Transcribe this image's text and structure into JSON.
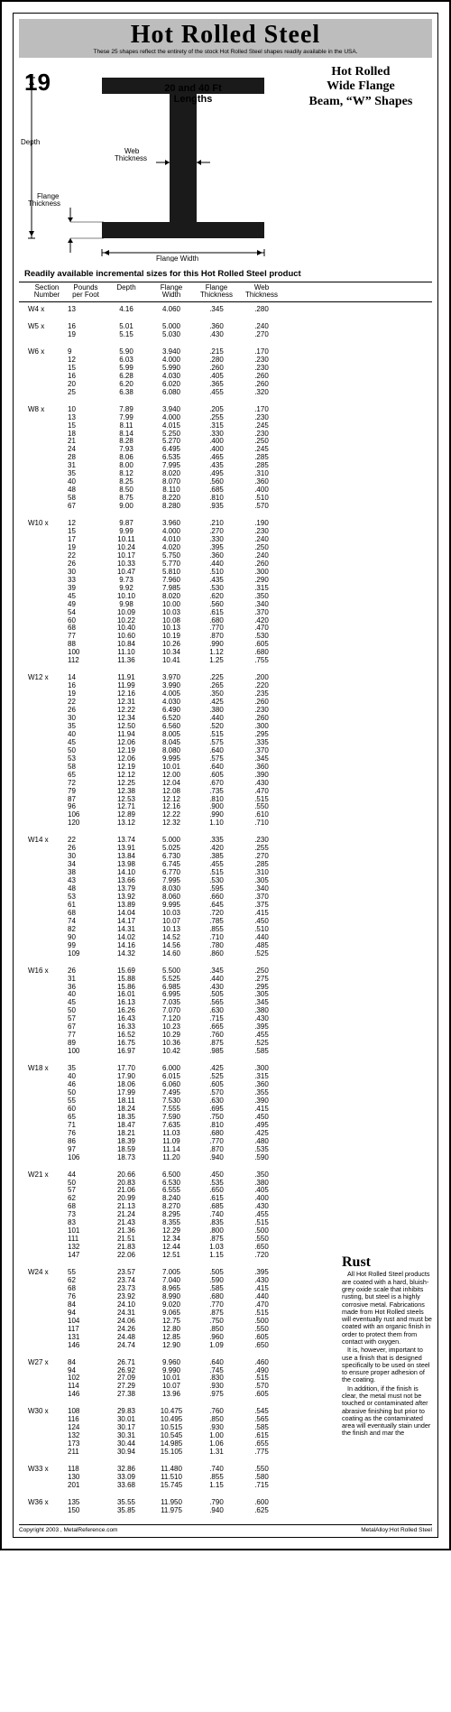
{
  "title": "Hot Rolled Steel",
  "subtitle": "These 25 shapes reflect the entirety of the stock Hot Rolled Steel shapes readily available in the USA.",
  "page_number": "19",
  "lengths_label": "20 and 40 Ft Lengths",
  "hero_right_l1": "Hot Rolled",
  "hero_right_l2": "Wide Flange",
  "hero_right_l3": "Beam, “W” Shapes",
  "diagram": {
    "depth": "Depth",
    "web_thickness": "Web Thickness",
    "flange_thickness": "Flange Thickness",
    "flange_width": "Flange Width",
    "beam_color": "#1a1a1a",
    "dim_line_color": "#000000"
  },
  "readily_label": "Readily available incremental sizes for this Hot Rolled Steel product",
  "columns": {
    "section": "Section Number",
    "ppf": "Pounds per Foot",
    "depth": "Depth",
    "fw": "Flange Width",
    "ft": "Flange Thickness",
    "wt": "Web Thickness"
  },
  "groups": [
    {
      "label": "W4  x",
      "rows": [
        [
          "13",
          "4.16",
          "4.060",
          ".345",
          ".280"
        ]
      ]
    },
    {
      "label": "W5  x",
      "rows": [
        [
          "16",
          "5.01",
          "5.000",
          ".360",
          ".240"
        ],
        [
          "19",
          "5.15",
          "5.030",
          ".430",
          ".270"
        ]
      ]
    },
    {
      "label": "W6  x",
      "rows": [
        [
          "9",
          "5.90",
          "3.940",
          ".215",
          ".170"
        ],
        [
          "12",
          "6.03",
          "4.000",
          ".280",
          ".230"
        ],
        [
          "15",
          "5.99",
          "5.990",
          ".260",
          ".230"
        ],
        [
          "16",
          "6.28",
          "4.030",
          ".405",
          ".260"
        ],
        [
          "20",
          "6.20",
          "6.020",
          ".365",
          ".260"
        ],
        [
          "25",
          "6.38",
          "6.080",
          ".455",
          ".320"
        ]
      ]
    },
    {
      "label": "W8  x",
      "rows": [
        [
          "10",
          "7.89",
          "3.940",
          ".205",
          ".170"
        ],
        [
          "13",
          "7.99",
          "4.000",
          ".255",
          ".230"
        ],
        [
          "15",
          "8.11",
          "4.015",
          ".315",
          ".245"
        ],
        [
          "18",
          "8.14",
          "5.250",
          ".330",
          ".230"
        ],
        [
          "21",
          "8.28",
          "5.270",
          ".400",
          ".250"
        ],
        [
          "24",
          "7.93",
          "6.495",
          ".400",
          ".245"
        ],
        [
          "28",
          "8.06",
          "6.535",
          ".465",
          ".285"
        ],
        [
          "31",
          "8.00",
          "7.995",
          ".435",
          ".285"
        ],
        [
          "35",
          "8.12",
          "8.020",
          ".495",
          ".310"
        ],
        [
          "40",
          "8.25",
          "8.070",
          ".560",
          ".360"
        ],
        [
          "48",
          "8.50",
          "8.110",
          ".685",
          ".400"
        ],
        [
          "58",
          "8.75",
          "8.220",
          ".810",
          ".510"
        ],
        [
          "67",
          "9.00",
          "8.280",
          ".935",
          ".570"
        ]
      ]
    },
    {
      "label": "W10  x",
      "rows": [
        [
          "12",
          "9.87",
          "3.960",
          ".210",
          ".190"
        ],
        [
          "15",
          "9.99",
          "4.000",
          ".270",
          ".230"
        ],
        [
          "17",
          "10.11",
          "4.010",
          ".330",
          ".240"
        ],
        [
          "19",
          "10.24",
          "4.020",
          ".395",
          ".250"
        ],
        [
          "22",
          "10.17",
          "5.750",
          ".360",
          ".240"
        ],
        [
          "26",
          "10.33",
          "5.770",
          ".440",
          ".260"
        ],
        [
          "30",
          "10.47",
          "5.810",
          ".510",
          ".300"
        ],
        [
          "33",
          "9.73",
          "7.960",
          ".435",
          ".290"
        ],
        [
          "39",
          "9.92",
          "7.985",
          ".530",
          ".315"
        ],
        [
          "45",
          "10.10",
          "8.020",
          ".620",
          ".350"
        ],
        [
          "49",
          "9.98",
          "10.00",
          ".560",
          ".340"
        ],
        [
          "54",
          "10.09",
          "10.03",
          ".615",
          ".370"
        ],
        [
          "60",
          "10.22",
          "10.08",
          ".680",
          ".420"
        ],
        [
          "68",
          "10.40",
          "10.13",
          ".770",
          ".470"
        ],
        [
          "77",
          "10.60",
          "10.19",
          ".870",
          ".530"
        ],
        [
          "88",
          "10.84",
          "10.26",
          ".990",
          ".605"
        ],
        [
          "100",
          "11.10",
          "10.34",
          "1.12",
          ".680"
        ],
        [
          "112",
          "11.36",
          "10.41",
          "1.25",
          ".755"
        ]
      ]
    },
    {
      "label": "W12  x",
      "rows": [
        [
          "14",
          "11.91",
          "3.970",
          ".225",
          ".200"
        ],
        [
          "16",
          "11.99",
          "3.990",
          ".265",
          ".220"
        ],
        [
          "19",
          "12.16",
          "4.005",
          ".350",
          ".235"
        ],
        [
          "22",
          "12.31",
          "4.030",
          ".425",
          ".260"
        ],
        [
          "26",
          "12.22",
          "6.490",
          ".380",
          ".230"
        ],
        [
          "30",
          "12.34",
          "6.520",
          ".440",
          ".260"
        ],
        [
          "35",
          "12.50",
          "6.560",
          ".520",
          ".300"
        ],
        [
          "40",
          "11.94",
          "8.005",
          ".515",
          ".295"
        ],
        [
          "45",
          "12.06",
          "8.045",
          ".575",
          ".335"
        ],
        [
          "50",
          "12.19",
          "8.080",
          ".640",
          ".370"
        ],
        [
          "53",
          "12.06",
          "9.995",
          ".575",
          ".345"
        ],
        [
          "58",
          "12.19",
          "10.01",
          ".640",
          ".360"
        ],
        [
          "65",
          "12.12",
          "12.00",
          ".605",
          ".390"
        ],
        [
          "72",
          "12.25",
          "12.04",
          ".670",
          ".430"
        ],
        [
          "79",
          "12.38",
          "12.08",
          ".735",
          ".470"
        ],
        [
          "87",
          "12.53",
          "12.12",
          ".810",
          ".515"
        ],
        [
          "96",
          "12.71",
          "12.16",
          ".900",
          ".550"
        ],
        [
          "106",
          "12.89",
          "12.22",
          ".990",
          ".610"
        ],
        [
          "120",
          "13.12",
          "12.32",
          "1.10",
          ".710"
        ]
      ]
    },
    {
      "label": "W14  x",
      "rows": [
        [
          "22",
          "13.74",
          "5.000",
          ".335",
          ".230"
        ],
        [
          "26",
          "13.91",
          "5.025",
          ".420",
          ".255"
        ],
        [
          "30",
          "13.84",
          "6.730",
          ".385",
          ".270"
        ],
        [
          "34",
          "13.98",
          "6.745",
          ".455",
          ".285"
        ],
        [
          "38",
          "14.10",
          "6.770",
          ".515",
          ".310"
        ],
        [
          "43",
          "13.66",
          "7.995",
          ".530",
          ".305"
        ],
        [
          "48",
          "13.79",
          "8.030",
          ".595",
          ".340"
        ],
        [
          "53",
          "13.92",
          "8.060",
          ".660",
          ".370"
        ],
        [
          "61",
          "13.89",
          "9.995",
          ".645",
          ".375"
        ],
        [
          "68",
          "14.04",
          "10.03",
          ".720",
          ".415"
        ],
        [
          "74",
          "14.17",
          "10.07",
          ".785",
          ".450"
        ],
        [
          "82",
          "14.31",
          "10.13",
          ".855",
          ".510"
        ],
        [
          "90",
          "14.02",
          "14.52",
          ".710",
          ".440"
        ],
        [
          "99",
          "14.16",
          "14.56",
          ".780",
          ".485"
        ],
        [
          "109",
          "14.32",
          "14.60",
          ".860",
          ".525"
        ]
      ]
    },
    {
      "label": "W16  x",
      "rows": [
        [
          "26",
          "15.69",
          "5.500",
          ".345",
          ".250"
        ],
        [
          "31",
          "15.88",
          "5.525",
          ".440",
          ".275"
        ],
        [
          "36",
          "15.86",
          "6.985",
          ".430",
          ".295"
        ],
        [
          "40",
          "16.01",
          "6.995",
          ".505",
          ".305"
        ],
        [
          "45",
          "16.13",
          "7.035",
          ".565",
          ".345"
        ],
        [
          "50",
          "16.26",
          "7.070",
          ".630",
          ".380"
        ],
        [
          "57",
          "16.43",
          "7.120",
          ".715",
          ".430"
        ],
        [
          "67",
          "16.33",
          "10.23",
          ".665",
          ".395"
        ],
        [
          "77",
          "16.52",
          "10.29",
          ".760",
          ".455"
        ],
        [
          "89",
          "16.75",
          "10.36",
          ".875",
          ".525"
        ],
        [
          "100",
          "16.97",
          "10.42",
          ".985",
          ".585"
        ]
      ]
    },
    {
      "label": "W18  x",
      "rows": [
        [
          "35",
          "17.70",
          "6.000",
          ".425",
          ".300"
        ],
        [
          "40",
          "17.90",
          "6.015",
          ".525",
          ".315"
        ],
        [
          "46",
          "18.06",
          "6.060",
          ".605",
          ".360"
        ],
        [
          "50",
          "17.99",
          "7.495",
          ".570",
          ".355"
        ],
        [
          "55",
          "18.11",
          "7.530",
          ".630",
          ".390"
        ],
        [
          "60",
          "18.24",
          "7.555",
          ".695",
          ".415"
        ],
        [
          "65",
          "18.35",
          "7.590",
          ".750",
          ".450"
        ],
        [
          "71",
          "18.47",
          "7.635",
          ".810",
          ".495"
        ],
        [
          "76",
          "18.21",
          "11.03",
          ".680",
          ".425"
        ],
        [
          "86",
          "18.39",
          "11.09",
          ".770",
          ".480"
        ],
        [
          "97",
          "18.59",
          "11.14",
          ".870",
          ".535"
        ],
        [
          "106",
          "18.73",
          "11.20",
          ".940",
          ".590"
        ]
      ]
    },
    {
      "label": "W21  x",
      "rows": [
        [
          "44",
          "20.66",
          "6.500",
          ".450",
          ".350"
        ],
        [
          "50",
          "20.83",
          "6.530",
          ".535",
          ".380"
        ],
        [
          "57",
          "21.06",
          "6.555",
          ".650",
          ".405"
        ],
        [
          "62",
          "20.99",
          "8.240",
          ".615",
          ".400"
        ],
        [
          "68",
          "21.13",
          "8.270",
          ".685",
          ".430"
        ],
        [
          "73",
          "21.24",
          "8.295",
          ".740",
          ".455"
        ],
        [
          "83",
          "21.43",
          "8.355",
          ".835",
          ".515"
        ],
        [
          "101",
          "21.36",
          "12.29",
          ".800",
          ".500"
        ],
        [
          "111",
          "21.51",
          "12.34",
          ".875",
          ".550"
        ],
        [
          "132",
          "21.83",
          "12.44",
          "1.03",
          ".650"
        ],
        [
          "147",
          "22.06",
          "12.51",
          "1.15",
          ".720"
        ]
      ]
    },
    {
      "label": "W24  x",
      "rows": [
        [
          "55",
          "23.57",
          "7.005",
          ".505",
          ".395"
        ],
        [
          "62",
          "23.74",
          "7.040",
          ".590",
          ".430"
        ],
        [
          "68",
          "23.73",
          "8.965",
          ".585",
          ".415"
        ],
        [
          "76",
          "23.92",
          "8.990",
          ".680",
          ".440"
        ],
        [
          "84",
          "24.10",
          "9.020",
          ".770",
          ".470"
        ],
        [
          "94",
          "24.31",
          "9.065",
          ".875",
          ".515"
        ],
        [
          "104",
          "24.06",
          "12.75",
          ".750",
          ".500"
        ],
        [
          "117",
          "24.26",
          "12.80",
          ".850",
          ".550"
        ],
        [
          "131",
          "24.48",
          "12.85",
          ".960",
          ".605"
        ],
        [
          "146",
          "24.74",
          "12.90",
          "1.09",
          ".650"
        ]
      ]
    },
    {
      "label": "W27  x",
      "rows": [
        [
          "84",
          "26.71",
          "9.960",
          ".640",
          ".460"
        ],
        [
          "94",
          "26.92",
          "9.990",
          ".745",
          ".490"
        ],
        [
          "102",
          "27.09",
          "10.01",
          ".830",
          ".515"
        ],
        [
          "114",
          "27.29",
          "10.07",
          ".930",
          ".570"
        ],
        [
          "146",
          "27.38",
          "13.96",
          ".975",
          ".605"
        ]
      ]
    },
    {
      "label": "W30  x",
      "rows": [
        [
          "108",
          "29.83",
          "10.475",
          ".760",
          ".545"
        ],
        [
          "116",
          "30.01",
          "10.495",
          ".850",
          ".565"
        ],
        [
          "124",
          "30.17",
          "10.515",
          ".930",
          ".585"
        ],
        [
          "132",
          "30.31",
          "10.545",
          "1.00",
          ".615"
        ],
        [
          "173",
          "30.44",
          "14.985",
          "1.06",
          ".655"
        ],
        [
          "211",
          "30.94",
          "15.105",
          "1.31",
          ".775"
        ]
      ]
    },
    {
      "label": "W33  x",
      "rows": [
        [
          "118",
          "32.86",
          "11.480",
          ".740",
          ".550"
        ],
        [
          "130",
          "33.09",
          "11.510",
          ".855",
          ".580"
        ],
        [
          "201",
          "33.68",
          "15.745",
          "1.15",
          ".715"
        ]
      ]
    },
    {
      "label": "W36  x",
      "rows": [
        [
          "135",
          "35.55",
          "11.950",
          ".790",
          ".600"
        ],
        [
          "150",
          "35.85",
          "11.975",
          ".940",
          ".625"
        ]
      ]
    }
  ],
  "rust": {
    "title": "Rust",
    "p1": "All Hot Rolled Steel products are coated with a hard, bluish-grey oxide scale that inhibits rusting, but steel is a highly corrosive metal. Fabrications made from Hot Rolled steels will eventually rust and must be coated with an organic finish in order to protect them from contact with oxygen.",
    "p2": "It is, however, important to use a finish that is designed specifically to be used on steel to ensure proper adhesion of the coating.",
    "p3": "In addition, if the finish is clear, the metal must not be touched or contaminated after abrasive finishing but prior to coating as the contaminated area will eventually stain under the finish and mar the"
  },
  "footer_left": "Copyright 2003 , MetalReference.com",
  "footer_right": "MetalAlloy:Hot Rolled Steel",
  "colors": {
    "header_bg": "#bdbdbd",
    "rule": "#000000"
  }
}
